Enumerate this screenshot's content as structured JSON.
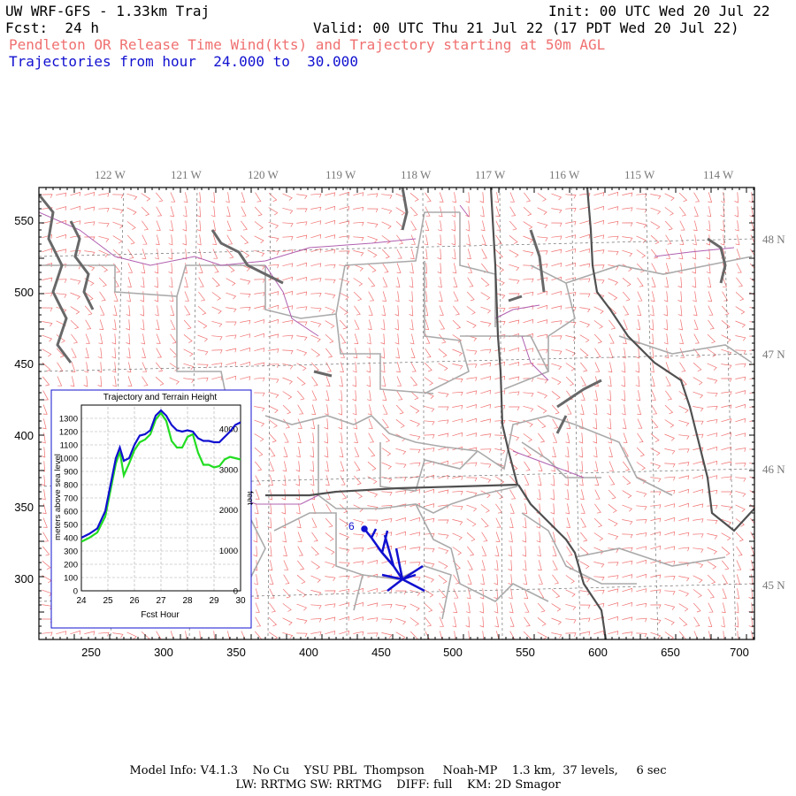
{
  "header": {
    "title": "UW WRF-GFS - 1.33km Traj",
    "init": "Init: 00 UTC Wed 20 Jul 22",
    "fcst": "Fcst:  24 h",
    "valid": "Valid: 00 UTC Thu 21 Jul 22 (17 PDT Wed 20 Jul 22)",
    "subtitle_red": "Pendleton OR Release Time Wind(kts) and Trajectory starting at 50m AGL",
    "subtitle_blue": "Trajectories from hour  24.000 to  30.000"
  },
  "colors": {
    "wind_barb": "#f07070",
    "trajectory": "#1010d0",
    "state_border": "#555555",
    "county_border": "#aaaaaa",
    "river": "#b060b0",
    "coast": "#606060",
    "terrain_line": "#22dd22"
  },
  "map": {
    "lon_labels": [
      "122 W",
      "121 W",
      "120 W",
      "119 W",
      "118 W",
      "117 W",
      "116 W",
      "115 W",
      "114 W"
    ],
    "lat_labels": [
      "48 N",
      "47 N",
      "46 N",
      "45 N"
    ],
    "x_ticks": [
      "250",
      "300",
      "350",
      "400",
      "450",
      "500",
      "550",
      "600",
      "650",
      "700"
    ],
    "y_ticks": [
      "550",
      "500",
      "450",
      "400",
      "350",
      "300"
    ],
    "trajectory_label": "6"
  },
  "inset": {
    "title": "Trajectory and Terrain Height",
    "ylabel_left": "meters above sea level",
    "ylabel_right": "feet",
    "xlabel": "Fcst Hour",
    "left_ticks": [
      "1300",
      "1200",
      "1100",
      "1000",
      "900",
      "800",
      "700",
      "600",
      "500",
      "400",
      "300",
      "200",
      "100",
      "0"
    ],
    "right_ticks": [
      "4000",
      "3000",
      "2000",
      "1000",
      "0"
    ],
    "x_ticks": [
      "24",
      "25",
      "26",
      "27",
      "28",
      "29",
      "30"
    ]
  },
  "chart_data": {
    "type": "line",
    "title": "Trajectory and Terrain Height",
    "xlabel": "Fcst Hour",
    "ylabel": "meters above sea level",
    "xlim": [
      24,
      30
    ],
    "ylim": [
      0,
      1400
    ],
    "x": [
      24.0,
      24.3,
      24.6,
      24.9,
      25.1,
      25.3,
      25.45,
      25.6,
      25.8,
      26.0,
      26.2,
      26.4,
      26.6,
      26.8,
      27.0,
      27.2,
      27.4,
      27.6,
      27.8,
      28.0,
      28.2,
      28.4,
      28.6,
      28.8,
      29.0,
      29.2,
      29.4,
      29.6,
      29.8,
      30.0
    ],
    "series": [
      {
        "values": [
          400,
          430,
          470,
          600,
          800,
          1000,
          1080,
          980,
          1000,
          1100,
          1170,
          1180,
          1210,
          1320,
          1360,
          1320,
          1250,
          1210,
          1200,
          1210,
          1200,
          1150,
          1130,
          1130,
          1120,
          1120,
          1160,
          1200,
          1250,
          1270
        ]
      },
      {
        "values": [
          370,
          400,
          440,
          560,
          760,
          960,
          1050,
          870,
          960,
          1060,
          1120,
          1140,
          1180,
          1290,
          1340,
          1280,
          1130,
          1080,
          1080,
          1160,
          1180,
          1040,
          950,
          950,
          930,
          940,
          990,
          1010,
          1000,
          990
        ]
      }
    ]
  },
  "footer": {
    "line1": "Model Info: V4.1.3    No Cu    YSU PBL  Thompson     Noah-MP    1.3 km,  37 levels,     6 sec",
    "line2": "LW: RRTMG SW: RRTMG    DIFF: full    KM: 2D Smagor"
  }
}
